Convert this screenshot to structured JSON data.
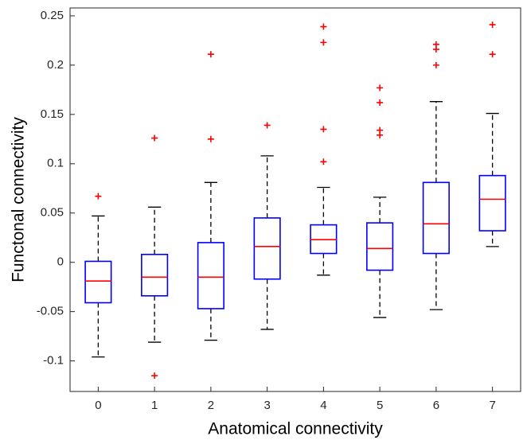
{
  "chart_data": {
    "type": "box",
    "x_label": "Anatomical connectivity",
    "y_label": "Functonal connectivity",
    "categories": [
      "0",
      "1",
      "2",
      "3",
      "4",
      "5",
      "6",
      "7"
    ],
    "boxes": [
      {
        "whisker_low": -0.096,
        "q1": -0.041,
        "median": -0.019,
        "q3": 0.001,
        "whisker_high": 0.047,
        "outliers": [
          0.067
        ]
      },
      {
        "whisker_low": -0.081,
        "q1": -0.034,
        "median": -0.015,
        "q3": 0.008,
        "whisker_high": 0.056,
        "outliers": [
          0.126,
          -0.115
        ]
      },
      {
        "whisker_low": -0.079,
        "q1": -0.047,
        "median": -0.015,
        "q3": 0.02,
        "whisker_high": 0.081,
        "outliers": [
          0.211,
          0.125
        ]
      },
      {
        "whisker_low": -0.068,
        "q1": -0.017,
        "median": 0.016,
        "q3": 0.045,
        "whisker_high": 0.108,
        "outliers": [
          0.139
        ]
      },
      {
        "whisker_low": -0.013,
        "q1": 0.009,
        "median": 0.023,
        "q3": 0.038,
        "whisker_high": 0.076,
        "outliers": [
          0.239,
          0.223,
          0.135,
          0.102
        ]
      },
      {
        "whisker_low": -0.056,
        "q1": -0.008,
        "median": 0.014,
        "q3": 0.04,
        "whisker_high": 0.066,
        "outliers": [
          0.177,
          0.162,
          0.134,
          0.129
        ]
      },
      {
        "whisker_low": -0.048,
        "q1": 0.009,
        "median": 0.039,
        "q3": 0.081,
        "whisker_high": 0.163,
        "outliers": [
          0.221,
          0.216,
          0.2
        ]
      },
      {
        "whisker_low": 0.016,
        "q1": 0.032,
        "median": 0.064,
        "q3": 0.088,
        "whisker_high": 0.151,
        "outliers": [
          0.241,
          0.211
        ]
      }
    ],
    "box_color": "#0000ff",
    "median_color": "#ff0000",
    "whisker_color": "#000000",
    "outlier_color": "#ff0000",
    "ylim": [
      -0.131,
      0.258
    ],
    "yticks": [
      -0.1,
      -0.05,
      0,
      0.05,
      0.1,
      0.15,
      0.2,
      0.25
    ],
    "grid": false
  }
}
